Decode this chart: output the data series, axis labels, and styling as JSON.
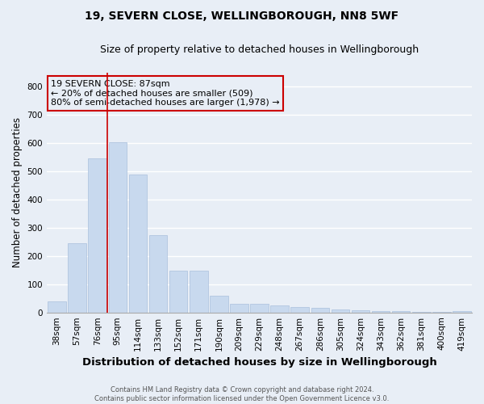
{
  "title1": "19, SEVERN CLOSE, WELLINGBOROUGH, NN8 5WF",
  "title2": "Size of property relative to detached houses in Wellingborough",
  "xlabel": "Distribution of detached houses by size in Wellingborough",
  "ylabel": "Number of detached properties",
  "footer": "Contains HM Land Registry data © Crown copyright and database right 2024.\nContains public sector information licensed under the Open Government Licence v3.0.",
  "categories": [
    "38sqm",
    "57sqm",
    "76sqm",
    "95sqm",
    "114sqm",
    "133sqm",
    "152sqm",
    "171sqm",
    "190sqm",
    "209sqm",
    "229sqm",
    "248sqm",
    "267sqm",
    "286sqm",
    "305sqm",
    "324sqm",
    "343sqm",
    "362sqm",
    "381sqm",
    "400sqm",
    "419sqm"
  ],
  "values": [
    40,
    245,
    545,
    605,
    490,
    275,
    148,
    148,
    60,
    30,
    30,
    25,
    20,
    15,
    10,
    8,
    5,
    5,
    3,
    3,
    5
  ],
  "bar_color": "#c8d9ee",
  "bar_edge_color": "#aac0dc",
  "background_color": "#e8eef6",
  "grid_color": "#ffffff",
  "annotation_text": "19 SEVERN CLOSE: 87sqm\n← 20% of detached houses are smaller (509)\n80% of semi-detached houses are larger (1,978) →",
  "annotation_box_color": "#cc0000",
  "vline_color": "#cc0000",
  "vline_x_index": 3,
  "ylim": [
    0,
    850
  ],
  "yticks": [
    0,
    100,
    200,
    300,
    400,
    500,
    600,
    700,
    800
  ],
  "title1_fontsize": 10,
  "title2_fontsize": 9,
  "xlabel_fontsize": 9.5,
  "ylabel_fontsize": 8.5,
  "tick_fontsize": 7.5,
  "footer_fontsize": 6.0
}
